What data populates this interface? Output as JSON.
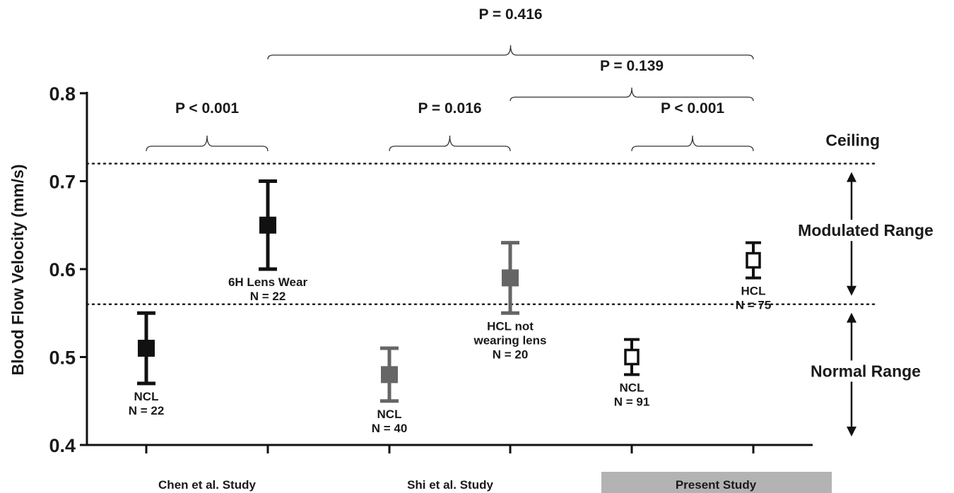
{
  "chart_data": {
    "type": "scatter",
    "ylabel": "Blood Flow Velocity (mm/s)",
    "ylim": [
      0.4,
      0.8
    ],
    "yticks": [
      "0.4",
      "0.5",
      "0.6",
      "0.7",
      "0.8"
    ],
    "groups": [
      {
        "label": "Chen et al. Study",
        "highlighted": false
      },
      {
        "label": "Shi et al. Study",
        "highlighted": false
      },
      {
        "label": "Present Study",
        "highlighted": true
      }
    ],
    "points": [
      {
        "group": 0,
        "lines": [
          "NCL",
          "N = 22"
        ],
        "mean": 0.51,
        "low": 0.47,
        "high": 0.55,
        "color": "#111111",
        "filled": true,
        "label_pos": "below"
      },
      {
        "group": 0,
        "lines": [
          "6H Lens Wear",
          "N = 22"
        ],
        "mean": 0.65,
        "low": 0.6,
        "high": 0.7,
        "color": "#111111",
        "filled": true,
        "label_pos": "below"
      },
      {
        "group": 1,
        "lines": [
          "NCL",
          "N = 40"
        ],
        "mean": 0.48,
        "low": 0.45,
        "high": 0.51,
        "color": "#666666",
        "filled": true,
        "label_pos": "below"
      },
      {
        "group": 1,
        "lines": [
          "HCL not",
          "wearing lens",
          "N = 20"
        ],
        "mean": 0.59,
        "low": 0.55,
        "high": 0.63,
        "color": "#666666",
        "filled": true,
        "label_pos": "below"
      },
      {
        "group": 2,
        "lines": [
          "NCL",
          "N = 91"
        ],
        "mean": 0.5,
        "low": 0.48,
        "high": 0.52,
        "color": "#111111",
        "filled": false,
        "label_pos": "below"
      },
      {
        "group": 2,
        "lines": [
          "HCL",
          "N = 75"
        ],
        "mean": 0.61,
        "low": 0.59,
        "high": 0.63,
        "color": "#111111",
        "filled": false,
        "label_pos": "below"
      }
    ],
    "reference_lines": [
      {
        "y": 0.72,
        "label": "Ceiling"
      },
      {
        "y": 0.56,
        "label": ""
      }
    ],
    "ranges": [
      {
        "label": "Modulated Range",
        "from": 0.56,
        "to": 0.72
      },
      {
        "label": "Normal Range",
        "from": 0.4,
        "to": 0.56
      }
    ],
    "comparisons": [
      {
        "from": 1,
        "to": 5,
        "p": "P = 0.416"
      },
      {
        "from": 3,
        "to": 5,
        "p": "P = 0.139"
      },
      {
        "from": 0,
        "to": 1,
        "p": "P < 0.001"
      },
      {
        "from": 2,
        "to": 3,
        "p": "P = 0.016"
      },
      {
        "from": 4,
        "to": 5,
        "p": "P < 0.001"
      }
    ]
  }
}
